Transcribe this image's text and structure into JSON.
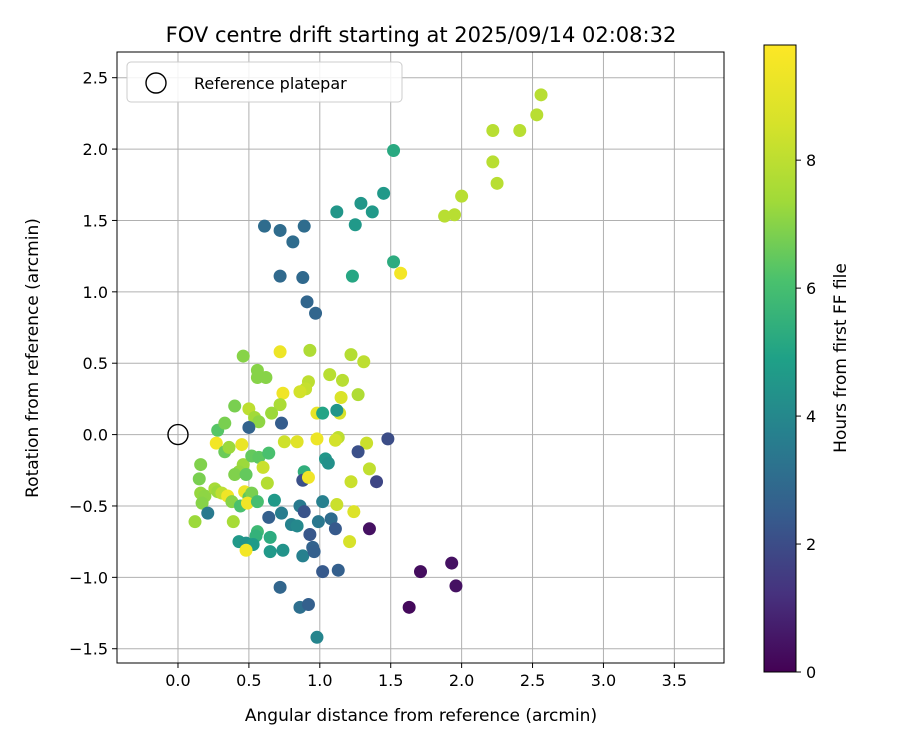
{
  "chart_data": {
    "type": "scatter",
    "title": "FOV centre drift starting at 2025/09/14 02:08:32",
    "xlabel": "Angular distance from reference (arcmin)",
    "ylabel": "Rotation from reference (arcmin)",
    "xlim": [
      -0.43,
      3.85
    ],
    "ylim": [
      -1.6,
      2.68
    ],
    "xticks": [
      "0.0",
      "0.5",
      "1.0",
      "1.5",
      "2.0",
      "2.5",
      "3.0",
      "3.5"
    ],
    "yticks": [
      "−1.5",
      "−1.0",
      "−0.5",
      "0.0",
      "0.5",
      "1.0",
      "1.5",
      "2.0",
      "2.5"
    ],
    "grid": true,
    "legend": {
      "position": "top-left",
      "entries": [
        "Reference platepar"
      ]
    },
    "reference_point": {
      "x": 0.0,
      "y": 0.0
    },
    "colorbar": {
      "label": "Hours from first FF file",
      "min": 0,
      "max": 9.8,
      "ticks": [
        "0",
        "2",
        "4",
        "6",
        "8"
      ],
      "colormap": "viridis"
    },
    "points": [
      {
        "x": 2.56,
        "y": 2.38,
        "h": 7.9
      },
      {
        "x": 2.53,
        "y": 2.24,
        "h": 7.9
      },
      {
        "x": 2.22,
        "y": 2.13,
        "h": 7.9
      },
      {
        "x": 2.41,
        "y": 2.13,
        "h": 7.9
      },
      {
        "x": 2.22,
        "y": 1.91,
        "h": 7.9
      },
      {
        "x": 2.25,
        "y": 1.76,
        "h": 7.9
      },
      {
        "x": 2.0,
        "y": 1.67,
        "h": 7.9
      },
      {
        "x": 1.88,
        "y": 1.53,
        "h": 7.9
      },
      {
        "x": 1.95,
        "y": 1.54,
        "h": 7.9
      },
      {
        "x": 1.57,
        "y": 1.13,
        "h": 9.5
      },
      {
        "x": 1.52,
        "y": 1.99,
        "h": 5.2
      },
      {
        "x": 1.45,
        "y": 1.69,
        "h": 4.6
      },
      {
        "x": 1.29,
        "y": 1.62,
        "h": 4.5
      },
      {
        "x": 1.37,
        "y": 1.56,
        "h": 4.6
      },
      {
        "x": 1.12,
        "y": 1.56,
        "h": 4.5
      },
      {
        "x": 1.25,
        "y": 1.47,
        "h": 4.6
      },
      {
        "x": 1.52,
        "y": 1.21,
        "h": 5.3
      },
      {
        "x": 1.23,
        "y": 1.11,
        "h": 5.1
      },
      {
        "x": 0.61,
        "y": 1.46,
        "h": 3.0
      },
      {
        "x": 0.72,
        "y": 1.43,
        "h": 3.0
      },
      {
        "x": 0.89,
        "y": 1.46,
        "h": 3.0
      },
      {
        "x": 0.81,
        "y": 1.35,
        "h": 3.0
      },
      {
        "x": 0.72,
        "y": 1.11,
        "h": 2.9
      },
      {
        "x": 0.88,
        "y": 1.1,
        "h": 2.9
      },
      {
        "x": 0.91,
        "y": 0.93,
        "h": 2.8
      },
      {
        "x": 0.97,
        "y": 0.85,
        "h": 2.8
      },
      {
        "x": 0.46,
        "y": 0.55,
        "h": 7.0
      },
      {
        "x": 0.56,
        "y": 0.45,
        "h": 7.0
      },
      {
        "x": 0.56,
        "y": 0.4,
        "h": 7.0
      },
      {
        "x": 0.62,
        "y": 0.4,
        "h": 7.0
      },
      {
        "x": 0.72,
        "y": 0.58,
        "h": 9.3
      },
      {
        "x": 0.93,
        "y": 0.59,
        "h": 7.7
      },
      {
        "x": 1.22,
        "y": 0.56,
        "h": 7.8
      },
      {
        "x": 1.31,
        "y": 0.51,
        "h": 8.0
      },
      {
        "x": 1.07,
        "y": 0.42,
        "h": 7.9
      },
      {
        "x": 1.16,
        "y": 0.38,
        "h": 7.9
      },
      {
        "x": 0.92,
        "y": 0.37,
        "h": 8.0
      },
      {
        "x": 0.9,
        "y": 0.32,
        "h": 8.2
      },
      {
        "x": 0.86,
        "y": 0.3,
        "h": 8.5
      },
      {
        "x": 0.74,
        "y": 0.29,
        "h": 9.4
      },
      {
        "x": 1.27,
        "y": 0.28,
        "h": 7.7
      },
      {
        "x": 1.15,
        "y": 0.26,
        "h": 8.7
      },
      {
        "x": 0.4,
        "y": 0.2,
        "h": 6.8
      },
      {
        "x": 0.5,
        "y": 0.18,
        "h": 8.0
      },
      {
        "x": 0.72,
        "y": 0.21,
        "h": 7.6
      },
      {
        "x": 0.66,
        "y": 0.15,
        "h": 7.3
      },
      {
        "x": 0.54,
        "y": 0.12,
        "h": 7.4
      },
      {
        "x": 0.57,
        "y": 0.09,
        "h": 7.1
      },
      {
        "x": 0.98,
        "y": 0.15,
        "h": 9.1
      },
      {
        "x": 1.02,
        "y": 0.15,
        "h": 5.0
      },
      {
        "x": 1.14,
        "y": 0.15,
        "h": 8.6
      },
      {
        "x": 1.12,
        "y": 0.17,
        "h": 4.5
      },
      {
        "x": 0.73,
        "y": 0.08,
        "h": 2.5
      },
      {
        "x": 0.5,
        "y": 0.05,
        "h": 2.7
      },
      {
        "x": 0.28,
        "y": 0.03,
        "h": 6.3
      },
      {
        "x": 0.33,
        "y": 0.08,
        "h": 6.8
      },
      {
        "x": 0.27,
        "y": -0.06,
        "h": 9.5
      },
      {
        "x": 0.45,
        "y": -0.07,
        "h": 9.2
      },
      {
        "x": 0.33,
        "y": -0.12,
        "h": 6.6
      },
      {
        "x": 0.36,
        "y": -0.09,
        "h": 7.3
      },
      {
        "x": 0.75,
        "y": -0.05,
        "h": 8.4
      },
      {
        "x": 0.84,
        "y": -0.05,
        "h": 8.9
      },
      {
        "x": 0.98,
        "y": -0.03,
        "h": 9.3
      },
      {
        "x": 1.13,
        "y": -0.02,
        "h": 8.0
      },
      {
        "x": 1.11,
        "y": -0.04,
        "h": 8.5
      },
      {
        "x": 1.48,
        "y": -0.03,
        "h": 2.0
      },
      {
        "x": 1.33,
        "y": -0.06,
        "h": 8.3
      },
      {
        "x": 1.27,
        "y": -0.12,
        "h": 2.1
      },
      {
        "x": 0.16,
        "y": -0.21,
        "h": 6.9
      },
      {
        "x": 0.46,
        "y": -0.21,
        "h": 7.3
      },
      {
        "x": 0.52,
        "y": -0.15,
        "h": 6.5
      },
      {
        "x": 0.57,
        "y": -0.16,
        "h": 6.4
      },
      {
        "x": 0.64,
        "y": -0.13,
        "h": 6.1
      },
      {
        "x": 0.6,
        "y": -0.23,
        "h": 8.3
      },
      {
        "x": 0.43,
        "y": -0.26,
        "h": 7.2
      },
      {
        "x": 0.4,
        "y": -0.28,
        "h": 6.9
      },
      {
        "x": 0.48,
        "y": -0.28,
        "h": 6.5
      },
      {
        "x": 0.63,
        "y": -0.34,
        "h": 7.8
      },
      {
        "x": 0.89,
        "y": -0.26,
        "h": 5.4
      },
      {
        "x": 0.88,
        "y": -0.32,
        "h": 2.1
      },
      {
        "x": 0.92,
        "y": -0.3,
        "h": 9.4
      },
      {
        "x": 1.04,
        "y": -0.17,
        "h": 4.5
      },
      {
        "x": 1.06,
        "y": -0.2,
        "h": 4.3
      },
      {
        "x": 1.22,
        "y": -0.33,
        "h": 8.3
      },
      {
        "x": 1.35,
        "y": -0.24,
        "h": 8.1
      },
      {
        "x": 1.4,
        "y": -0.33,
        "h": 1.8
      },
      {
        "x": 0.15,
        "y": -0.31,
        "h": 6.8
      },
      {
        "x": 0.16,
        "y": -0.41,
        "h": 7.2
      },
      {
        "x": 0.19,
        "y": -0.43,
        "h": 7.1
      },
      {
        "x": 0.17,
        "y": -0.48,
        "h": 7.0
      },
      {
        "x": 0.26,
        "y": -0.38,
        "h": 7.5
      },
      {
        "x": 0.28,
        "y": -0.4,
        "h": 7.3
      },
      {
        "x": 0.31,
        "y": -0.41,
        "h": 8.0
      },
      {
        "x": 0.35,
        "y": -0.43,
        "h": 9.4
      },
      {
        "x": 0.38,
        "y": -0.47,
        "h": 7.0
      },
      {
        "x": 0.44,
        "y": -0.5,
        "h": 6.1
      },
      {
        "x": 0.47,
        "y": -0.4,
        "h": 9.3
      },
      {
        "x": 0.5,
        "y": -0.44,
        "h": 6.4
      },
      {
        "x": 0.52,
        "y": -0.41,
        "h": 6.8
      },
      {
        "x": 0.49,
        "y": -0.48,
        "h": 9.4
      },
      {
        "x": 0.56,
        "y": -0.47,
        "h": 6.0
      },
      {
        "x": 0.68,
        "y": -0.46,
        "h": 4.6
      },
      {
        "x": 0.86,
        "y": -0.5,
        "h": 3.5
      },
      {
        "x": 0.89,
        "y": -0.54,
        "h": 2.2
      },
      {
        "x": 1.02,
        "y": -0.47,
        "h": 3.7
      },
      {
        "x": 1.08,
        "y": -0.59,
        "h": 3.0
      },
      {
        "x": 1.12,
        "y": -0.49,
        "h": 8.3
      },
      {
        "x": 1.24,
        "y": -0.54,
        "h": 8.8
      },
      {
        "x": 0.21,
        "y": -0.55,
        "h": 3.5
      },
      {
        "x": 0.12,
        "y": -0.61,
        "h": 7.3
      },
      {
        "x": 0.39,
        "y": -0.61,
        "h": 7.5
      },
      {
        "x": 0.64,
        "y": -0.58,
        "h": 2.6
      },
      {
        "x": 0.73,
        "y": -0.55,
        "h": 3.6
      },
      {
        "x": 0.8,
        "y": -0.63,
        "h": 3.8
      },
      {
        "x": 0.84,
        "y": -0.64,
        "h": 4.0
      },
      {
        "x": 0.99,
        "y": -0.61,
        "h": 3.4
      },
      {
        "x": 0.93,
        "y": -0.7,
        "h": 2.3
      },
      {
        "x": 1.11,
        "y": -0.66,
        "h": 2.4
      },
      {
        "x": 1.35,
        "y": -0.66,
        "h": 0.4
      },
      {
        "x": 1.21,
        "y": -0.75,
        "h": 8.6
      },
      {
        "x": 0.56,
        "y": -0.68,
        "h": 5.8
      },
      {
        "x": 0.55,
        "y": -0.71,
        "h": 5.5
      },
      {
        "x": 0.65,
        "y": -0.72,
        "h": 5.3
      },
      {
        "x": 0.43,
        "y": -0.75,
        "h": 4.6
      },
      {
        "x": 0.48,
        "y": -0.76,
        "h": 4.4
      },
      {
        "x": 0.53,
        "y": -0.77,
        "h": 4.7
      },
      {
        "x": 0.48,
        "y": -0.81,
        "h": 9.5
      },
      {
        "x": 0.65,
        "y": -0.82,
        "h": 4.6
      },
      {
        "x": 0.74,
        "y": -0.81,
        "h": 4.4
      },
      {
        "x": 0.88,
        "y": -0.85,
        "h": 3.7
      },
      {
        "x": 0.95,
        "y": -0.79,
        "h": 2.7
      },
      {
        "x": 0.96,
        "y": -0.82,
        "h": 2.6
      },
      {
        "x": 1.02,
        "y": -0.96,
        "h": 2.4
      },
      {
        "x": 1.13,
        "y": -0.95,
        "h": 2.6
      },
      {
        "x": 0.72,
        "y": -1.07,
        "h": 2.8
      },
      {
        "x": 0.86,
        "y": -1.21,
        "h": 3.1
      },
      {
        "x": 0.92,
        "y": -1.19,
        "h": 2.6
      },
      {
        "x": 0.98,
        "y": -1.42,
        "h": 3.9
      },
      {
        "x": 1.71,
        "y": -0.96,
        "h": 0.3
      },
      {
        "x": 1.93,
        "y": -0.9,
        "h": 0.4
      },
      {
        "x": 1.96,
        "y": -1.06,
        "h": 0.4
      },
      {
        "x": 1.63,
        "y": -1.21,
        "h": 0.2
      }
    ]
  }
}
